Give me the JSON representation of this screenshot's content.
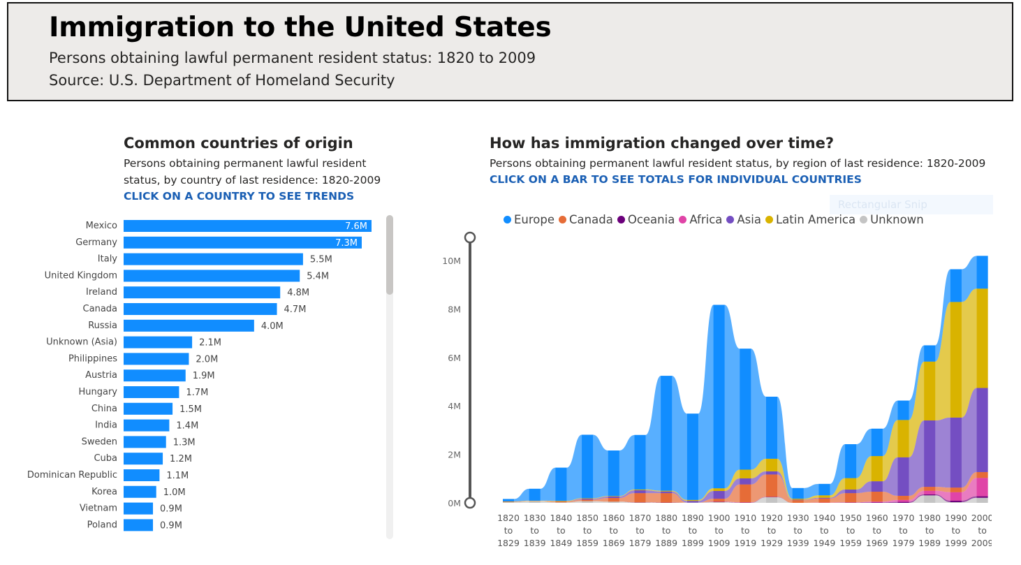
{
  "header": {
    "title": "Immigration to the United States",
    "subtitle": "Persons obtaining lawful permanent resident status: 1820 to 2009",
    "source": "Source: U.S. Department of Homeland Security"
  },
  "left_panel": {
    "title": "Common countries of origin",
    "subtitle_line1": "Persons obtaining permanent lawful resident",
    "subtitle_line2": "status, by country of last residence: 1820-2009",
    "cta": "CLICK ON A COUNTRY TO SEE TRENDS"
  },
  "right_panel": {
    "title": "How has immigration changed over time?",
    "subtitle": "Persons obtaining permanent lawful resident status, by region of last residence: 1820-2009",
    "cta": "CLICK ON A BAR TO SEE TOTALS FOR INDIVIDUAL COUNTRIES"
  },
  "overlay": {
    "snip_label": "Rectangular Snip"
  },
  "legend": [
    {
      "name": "Europe",
      "color": "#118DFF"
    },
    {
      "name": "Canada",
      "color": "#E66C37"
    },
    {
      "name": "Oceania",
      "color": "#6B007B"
    },
    {
      "name": "Africa",
      "color": "#E044A7"
    },
    {
      "name": "Asia",
      "color": "#744EC2"
    },
    {
      "name": "Latin America",
      "color": "#D9B300"
    },
    {
      "name": "Unknown",
      "color": "#C4C4C4"
    }
  ],
  "chart_data": [
    {
      "type": "bar",
      "orientation": "horizontal",
      "categories": [
        "Mexico",
        "Germany",
        "Italy",
        "United Kingdom",
        "Ireland",
        "Canada",
        "Russia",
        "Unknown (Asia)",
        "Philippines",
        "Austria",
        "Hungary",
        "China",
        "India",
        "Sweden",
        "Cuba",
        "Dominican Republic",
        "Korea",
        "Vietnam",
        "Poland"
      ],
      "values": [
        7.6,
        7.3,
        5.5,
        5.4,
        4.8,
        4.7,
        4.0,
        2.1,
        2.0,
        1.9,
        1.7,
        1.5,
        1.4,
        1.3,
        1.2,
        1.1,
        1.0,
        0.9,
        0.9
      ],
      "labels": [
        "7.6M",
        "7.3M",
        "5.5M",
        "5.4M",
        "4.8M",
        "4.7M",
        "4.0M",
        "2.1M",
        "2.0M",
        "1.9M",
        "1.7M",
        "1.5M",
        "1.4M",
        "1.3M",
        "1.2M",
        "1.1M",
        "1.0M",
        "0.9M",
        "0.9M"
      ],
      "unit": "M",
      "color": "#118DFF"
    },
    {
      "type": "area",
      "stacked": true,
      "categories": [
        [
          "1820",
          "to",
          "1829"
        ],
        [
          "1830",
          "to",
          "1839"
        ],
        [
          "1840",
          "to",
          "1849"
        ],
        [
          "1850",
          "to",
          "1859"
        ],
        [
          "1860",
          "to",
          "1869"
        ],
        [
          "1870",
          "to",
          "1879"
        ],
        [
          "1880",
          "to",
          "1889"
        ],
        [
          "1890",
          "to",
          "1899"
        ],
        [
          "1900",
          "to",
          "1909"
        ],
        [
          "1910",
          "to",
          "1919"
        ],
        [
          "1920",
          "to",
          "1929"
        ],
        [
          "1930",
          "to",
          "1939"
        ],
        [
          "1940",
          "to",
          "1949"
        ],
        [
          "1950",
          "to",
          "1959"
        ],
        [
          "1960",
          "to",
          "1969"
        ],
        [
          "1970",
          "to",
          "1979"
        ],
        [
          "1980",
          "to",
          "1989"
        ],
        [
          "1990",
          "to",
          "1999"
        ],
        [
          "2000",
          "to",
          "2009"
        ]
      ],
      "yticks": [
        "0M",
        "2M",
        "4M",
        "6M",
        "8M",
        "10M"
      ],
      "ylim": [
        0,
        10
      ],
      "series": [
        {
          "name": "Unknown",
          "color": "#C4C4C4",
          "values": [
            0.03,
            0.07,
            0.02,
            0.07,
            0.05,
            0.01,
            0.0,
            0.01,
            0.03,
            0.0,
            0.23,
            0.0,
            0.0,
            0.0,
            0.0,
            0.0,
            0.31,
            0.03,
            0.21
          ]
        },
        {
          "name": "Oceania",
          "color": "#6B007B",
          "values": [
            0.0,
            0.0,
            0.0,
            0.0,
            0.0,
            0.01,
            0.01,
            0.0,
            0.01,
            0.01,
            0.01,
            0.0,
            0.0,
            0.01,
            0.02,
            0.04,
            0.04,
            0.06,
            0.06
          ]
        },
        {
          "name": "Africa",
          "color": "#E044A7",
          "values": [
            0.0,
            0.0,
            0.0,
            0.0,
            0.0,
            0.0,
            0.0,
            0.0,
            0.01,
            0.01,
            0.01,
            0.0,
            0.01,
            0.01,
            0.03,
            0.08,
            0.15,
            0.35,
            0.76
          ]
        },
        {
          "name": "Canada",
          "color": "#E66C37",
          "values": [
            0.02,
            0.01,
            0.04,
            0.06,
            0.15,
            0.38,
            0.39,
            0.0,
            0.12,
            0.74,
            0.92,
            0.11,
            0.17,
            0.38,
            0.41,
            0.17,
            0.16,
            0.19,
            0.24
          ]
        },
        {
          "name": "Asia",
          "color": "#744EC2",
          "values": [
            0.0,
            0.0,
            0.0,
            0.04,
            0.06,
            0.12,
            0.07,
            0.07,
            0.32,
            0.25,
            0.13,
            0.02,
            0.03,
            0.15,
            0.43,
            1.59,
            2.74,
            2.89,
            3.47
          ]
        },
        {
          "name": "Latin America",
          "color": "#D9B300",
          "values": [
            0.01,
            0.01,
            0.02,
            0.02,
            0.02,
            0.03,
            0.03,
            0.04,
            0.11,
            0.36,
            0.52,
            0.04,
            0.1,
            0.47,
            1.04,
            1.54,
            2.43,
            4.77,
            4.1
          ]
        },
        {
          "name": "Europe",
          "color": "#118DFF",
          "values": [
            0.1,
            0.49,
            1.37,
            2.62,
            1.88,
            2.25,
            4.74,
            3.56,
            7.57,
            4.99,
            2.56,
            0.44,
            0.47,
            1.4,
            1.13,
            0.8,
            0.67,
            1.35,
            1.35
          ]
        }
      ]
    }
  ]
}
